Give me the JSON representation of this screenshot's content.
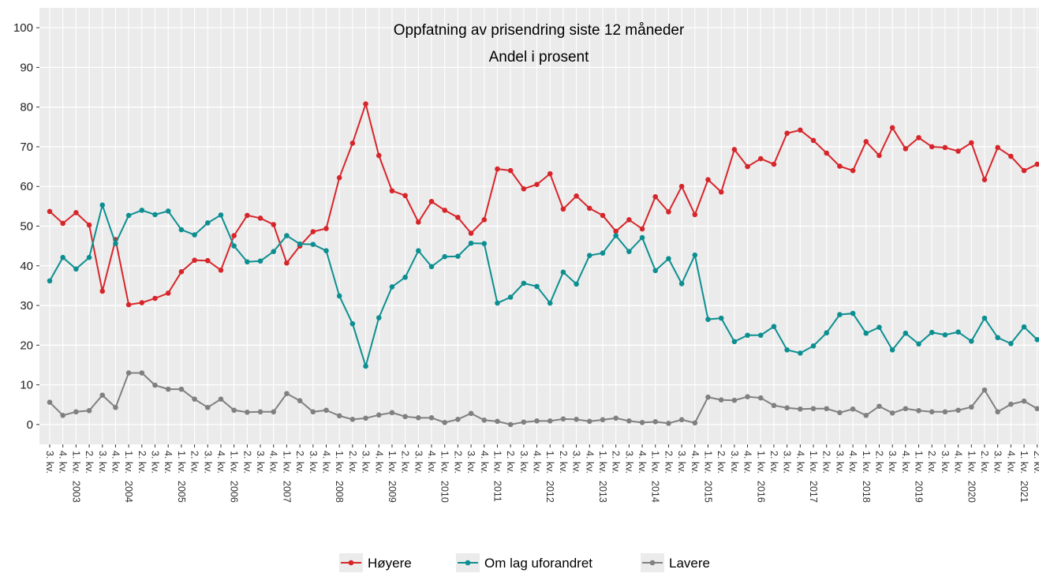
{
  "chart_data": {
    "type": "line",
    "title": "Oppfatning av prisendring siste 12 måneder",
    "subtitle": "Andel i prosent",
    "categories": [
      "3. kv.",
      "4. kv.",
      "1. kv.",
      "2. kv.",
      "3. kv.",
      "4. kv.",
      "1. kv.",
      "2. kv.",
      "3. kv.",
      "4. kv.",
      "1. kv.",
      "2. kv.",
      "3. kv.",
      "4. kv.",
      "1. kv.",
      "2. kv.",
      "3. kv.",
      "4. kv.",
      "1. kv.",
      "2. kv.",
      "3. kv.",
      "4. kv.",
      "1. kv.",
      "2. kv.",
      "3. kv.",
      "4. kv.",
      "1. kv.",
      "2. kv.",
      "3. kv.",
      "4. kv.",
      "1. kv.",
      "2. kv.",
      "3. kv.",
      "4. kv.",
      "1. kv.",
      "2. kv.",
      "3. kv.",
      "4. kv.",
      "1. kv.",
      "2. kv.",
      "3. kv.",
      "4. kv.",
      "1. kv.",
      "2. kv.",
      "3. kv.",
      "4. kv.",
      "1. kv.",
      "2. kv.",
      "3. kv.",
      "4. kv.",
      "1. kv.",
      "2. kv.",
      "3. kv.",
      "4. kv.",
      "1. kv.",
      "2. kv.",
      "3. kv.",
      "4. kv.",
      "1. kv.",
      "2. kv.",
      "3. kv.",
      "4. kv.",
      "1. kv.",
      "2. kv.",
      "3. kv.",
      "4. kv.",
      "1. kv.",
      "2. kv.",
      "3. kv.",
      "4. kv.",
      "1. kv.",
      "2. kv.",
      "3. kv.",
      "4. kv.",
      "1. kv.",
      "2. kv."
    ],
    "years": [
      null,
      null,
      "2003",
      null,
      null,
      null,
      "2004",
      null,
      null,
      null,
      "2005",
      null,
      null,
      null,
      "2006",
      null,
      null,
      null,
      "2007",
      null,
      null,
      null,
      "2008",
      null,
      null,
      null,
      "2009",
      null,
      null,
      null,
      "2010",
      null,
      null,
      null,
      "2011",
      null,
      null,
      null,
      "2012",
      null,
      null,
      null,
      "2013",
      null,
      null,
      null,
      "2014",
      null,
      null,
      null,
      "2015",
      null,
      null,
      null,
      "2016",
      null,
      null,
      null,
      "2017",
      null,
      null,
      null,
      "2018",
      null,
      null,
      null,
      "2019",
      null,
      null,
      null,
      "2020",
      null,
      null,
      null,
      "2021",
      null
    ],
    "series": [
      {
        "name": "Høyere",
        "color": "#d7262b",
        "values": [
          53.7,
          50.7,
          53.4,
          50.3,
          33.6,
          46.6,
          30.2,
          30.7,
          31.8,
          33.1,
          38.5,
          41.4,
          41.3,
          38.9,
          47.6,
          52.7,
          52.0,
          50.4,
          40.7,
          45.0,
          48.6,
          49.4,
          62.2,
          70.9,
          80.8,
          67.8,
          58.9,
          57.7,
          51.0,
          56.2,
          54.0,
          52.2,
          48.2,
          51.6,
          64.4,
          64.0,
          59.4,
          60.5,
          63.2,
          54.3,
          57.6,
          54.5,
          52.7,
          48.7,
          51.6,
          49.3,
          57.4,
          53.6,
          60.0,
          52.9,
          61.7,
          58.6,
          69.3,
          65.0,
          67.0,
          65.6,
          73.4,
          74.2,
          71.6,
          68.4,
          65.1,
          64.0,
          71.3,
          67.8,
          74.8,
          69.5,
          72.3,
          70.0,
          69.8,
          68.9,
          71.0,
          61.7,
          69.8,
          67.6,
          64.0,
          65.6
        ]
      },
      {
        "name": "Om lag uforandret",
        "color": "#0d8f91",
        "values": [
          36.2,
          42.1,
          39.2,
          42.1,
          55.3,
          45.6,
          52.7,
          54.0,
          52.9,
          53.8,
          49.1,
          47.8,
          50.8,
          52.8,
          45.0,
          41.0,
          41.2,
          43.6,
          47.6,
          45.5,
          45.4,
          43.8,
          32.4,
          25.4,
          14.7,
          26.9,
          34.7,
          37.1,
          43.8,
          39.8,
          42.3,
          42.4,
          45.7,
          45.6,
          30.6,
          32.1,
          35.6,
          34.8,
          30.6,
          38.4,
          35.4,
          42.6,
          43.2,
          47.6,
          43.6,
          47.1,
          38.8,
          41.8,
          35.5,
          42.7,
          26.5,
          26.8,
          20.9,
          22.5,
          22.5,
          24.7,
          18.8,
          18.0,
          19.8,
          23.1,
          27.7,
          28.0,
          23.0,
          24.5,
          18.8,
          23.0,
          20.3,
          23.2,
          22.6,
          23.3,
          21.0,
          26.8,
          21.9,
          20.4,
          24.6,
          21.4
        ]
      },
      {
        "name": "Lavere",
        "color": "#808080",
        "values": [
          5.6,
          2.3,
          3.2,
          3.5,
          7.4,
          4.3,
          13.0,
          13.0,
          9.9,
          8.9,
          8.9,
          6.4,
          4.3,
          6.4,
          3.6,
          3.1,
          3.2,
          3.2,
          7.8,
          6.0,
          3.2,
          3.6,
          2.2,
          1.3,
          1.6,
          2.4,
          3.0,
          2.0,
          1.7,
          1.7,
          0.5,
          1.3,
          2.8,
          1.1,
          0.8,
          0.0,
          0.6,
          0.9,
          0.9,
          1.4,
          1.3,
          0.8,
          1.2,
          1.6,
          0.9,
          0.5,
          0.7,
          0.3,
          1.2,
          0.4,
          6.9,
          6.2,
          6.1,
          7.0,
          6.7,
          4.8,
          4.2,
          3.9,
          4.0,
          4.0,
          3.0,
          3.9,
          2.3,
          4.6,
          2.9,
          4.0,
          3.5,
          3.2,
          3.2,
          3.6,
          4.4,
          8.7,
          3.2,
          5.1,
          5.9,
          4.0
        ]
      }
    ],
    "ylim": [
      -5,
      105
    ],
    "yticks": [
      0,
      10,
      20,
      30,
      40,
      50,
      60,
      70,
      80,
      90,
      100
    ],
    "grid": true,
    "legend": "bottom"
  }
}
